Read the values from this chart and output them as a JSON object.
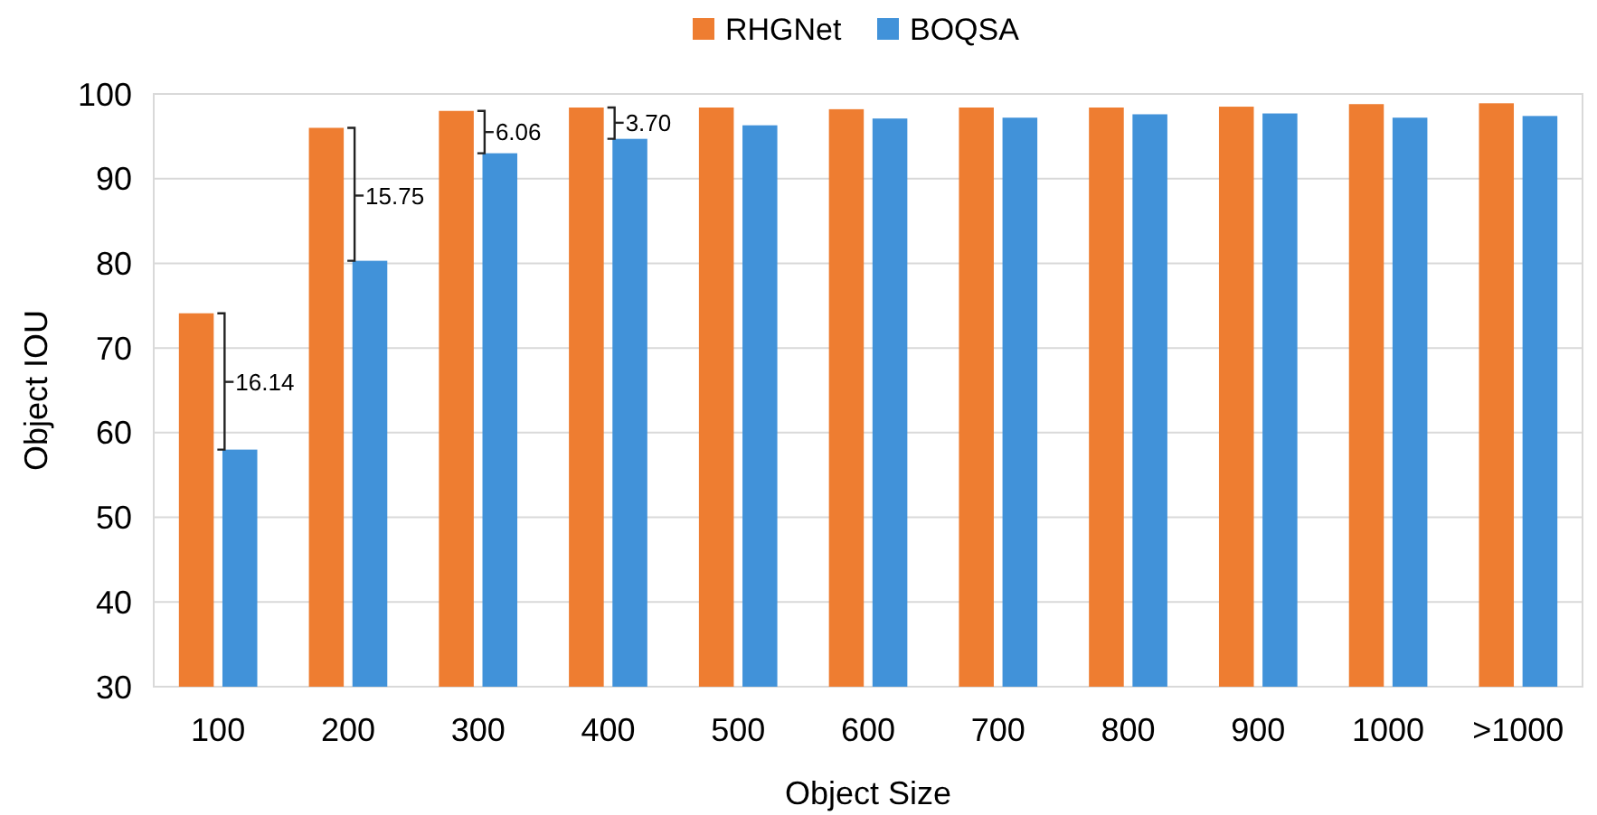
{
  "chart_data": {
    "type": "bar",
    "xlabel": "Object Size",
    "ylabel": "Object IOU",
    "categories": [
      "100",
      "200",
      "300",
      "400",
      "500",
      "600",
      "700",
      "800",
      "900",
      "1000",
      ">1000"
    ],
    "series": [
      {
        "name": "RHGNet",
        "color": "#ee7d31",
        "values": [
          74.1,
          96.0,
          98.0,
          98.4,
          98.4,
          98.2,
          98.4,
          98.4,
          98.5,
          98.8,
          98.9
        ]
      },
      {
        "name": "BOQSA",
        "color": "#4192d9",
        "values": [
          58.0,
          80.3,
          93.0,
          94.7,
          96.3,
          97.1,
          97.2,
          97.6,
          97.7,
          97.2,
          97.4
        ]
      }
    ],
    "ylim": [
      30,
      100
    ],
    "yticks": [
      30,
      40,
      50,
      60,
      70,
      80,
      90,
      100
    ],
    "grid": "y",
    "legend": "top",
    "annotations": [
      {
        "text": "16.14",
        "x": "100",
        "y": 66
      },
      {
        "text": "15.75",
        "x": "200",
        "y": 88
      },
      {
        "text": "6.06",
        "x": "300",
        "y": 95.5
      },
      {
        "text": "3.70",
        "x": "400",
        "y": 96.6
      }
    ]
  }
}
